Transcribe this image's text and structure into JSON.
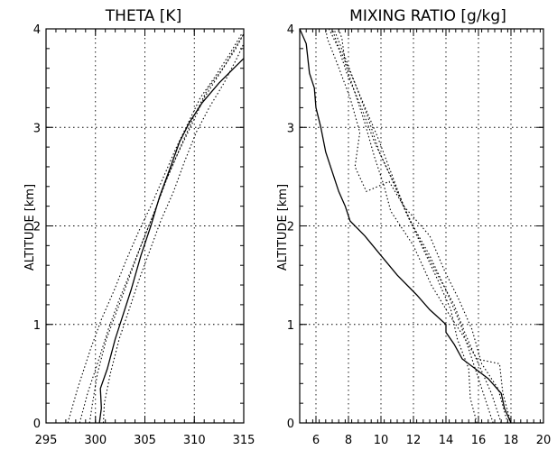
{
  "chart_data": [
    {
      "type": "line",
      "title": "THETA [K]",
      "xlabel": "",
      "ylabel": "ALTITUDE [km]",
      "xlim": [
        295,
        315
      ],
      "ylim": [
        0,
        4
      ],
      "xticks": [
        "295",
        "300",
        "305",
        "310",
        "315"
      ],
      "yticks": [
        "0",
        "1",
        "2",
        "3",
        "4"
      ],
      "grid": true,
      "series": [
        {
          "style": "solid",
          "points": [
            [
              300.4,
              0.0
            ],
            [
              300.6,
              0.15
            ],
            [
              300.5,
              0.35
            ],
            [
              301.2,
              0.55
            ],
            [
              302.0,
              0.85
            ],
            [
              302.8,
              1.1
            ],
            [
              303.6,
              1.35
            ],
            [
              304.6,
              1.7
            ],
            [
              305.6,
              2.0
            ],
            [
              306.5,
              2.3
            ],
            [
              307.6,
              2.6
            ],
            [
              308.5,
              2.85
            ],
            [
              309.5,
              3.05
            ],
            [
              310.8,
              3.25
            ],
            [
              312.5,
              3.45
            ],
            [
              314.0,
              3.6
            ],
            [
              315.0,
              3.7
            ]
          ]
        },
        {
          "style": "dotted",
          "points": [
            [
              299.4,
              0.0
            ],
            [
              299.7,
              0.2
            ],
            [
              300.2,
              0.5
            ],
            [
              301.1,
              0.85
            ],
            [
              302.4,
              1.2
            ],
            [
              303.5,
              1.5
            ],
            [
              304.6,
              1.8
            ],
            [
              305.8,
              2.1
            ],
            [
              307.1,
              2.45
            ],
            [
              308.4,
              2.75
            ],
            [
              309.6,
              3.0
            ],
            [
              311.0,
              3.3
            ],
            [
              312.6,
              3.55
            ],
            [
              314.2,
              3.8
            ],
            [
              315.0,
              3.95
            ]
          ]
        },
        {
          "style": "dotted",
          "points": [
            [
              298.4,
              0.0
            ],
            [
              299.2,
              0.3
            ],
            [
              300.2,
              0.6
            ],
            [
              301.3,
              0.95
            ],
            [
              302.4,
              1.25
            ],
            [
              303.6,
              1.55
            ],
            [
              304.8,
              1.85
            ],
            [
              306.0,
              2.15
            ],
            [
              307.3,
              2.5
            ],
            [
              308.6,
              2.8
            ],
            [
              309.9,
              3.1
            ],
            [
              311.4,
              3.4
            ],
            [
              312.9,
              3.6
            ],
            [
              314.4,
              3.85
            ],
            [
              315.0,
              3.95
            ]
          ]
        },
        {
          "style": "dotted",
          "points": [
            [
              297.2,
              0.0
            ],
            [
              298.2,
              0.35
            ],
            [
              299.5,
              0.75
            ],
            [
              300.6,
              1.05
            ],
            [
              301.9,
              1.35
            ],
            [
              303.1,
              1.65
            ],
            [
              304.4,
              1.95
            ],
            [
              305.6,
              2.2
            ],
            [
              306.9,
              2.5
            ],
            [
              308.2,
              2.8
            ],
            [
              309.4,
              3.05
            ],
            [
              310.6,
              3.3
            ],
            [
              312.0,
              3.5
            ],
            [
              313.6,
              3.75
            ],
            [
              314.8,
              3.95
            ]
          ]
        },
        {
          "style": "dotted",
          "points": [
            [
              300.8,
              0.0
            ],
            [
              300.9,
              0.2
            ],
            [
              301.5,
              0.5
            ],
            [
              302.4,
              0.85
            ],
            [
              303.4,
              1.15
            ],
            [
              304.4,
              1.45
            ],
            [
              305.5,
              1.75
            ],
            [
              306.6,
              2.05
            ],
            [
              307.9,
              2.35
            ],
            [
              309.0,
              2.65
            ],
            [
              310.2,
              2.95
            ],
            [
              311.5,
              3.2
            ],
            [
              313.0,
              3.45
            ],
            [
              314.3,
              3.7
            ],
            [
              315.0,
              3.85
            ]
          ]
        }
      ]
    },
    {
      "type": "line",
      "title": "MIXING RATIO [g/kg]",
      "xlabel": "",
      "ylabel": "ALTITUDE [km]",
      "xlim": [
        5,
        20
      ],
      "ylim": [
        0,
        4
      ],
      "xticks": [
        "6",
        "8",
        "10",
        "12",
        "14",
        "16",
        "18",
        "20"
      ],
      "yticks": [
        "0",
        "1",
        "2",
        "3",
        "4"
      ],
      "grid": true,
      "series": [
        {
          "style": "solid",
          "points": [
            [
              18.0,
              0.0
            ],
            [
              17.6,
              0.15
            ],
            [
              17.4,
              0.3
            ],
            [
              16.6,
              0.45
            ],
            [
              15.8,
              0.55
            ],
            [
              15.0,
              0.65
            ],
            [
              14.5,
              0.8
            ],
            [
              14.0,
              0.92
            ],
            [
              14.0,
              1.0
            ],
            [
              13.0,
              1.15
            ],
            [
              12.2,
              1.3
            ],
            [
              11.0,
              1.5
            ],
            [
              10.0,
              1.7
            ],
            [
              9.0,
              1.9
            ],
            [
              8.1,
              2.05
            ],
            [
              7.8,
              2.2
            ],
            [
              7.4,
              2.35
            ],
            [
              7.0,
              2.55
            ],
            [
              6.6,
              2.75
            ],
            [
              6.3,
              3.0
            ],
            [
              6.0,
              3.2
            ],
            [
              5.9,
              3.4
            ],
            [
              5.6,
              3.55
            ],
            [
              5.5,
              3.7
            ],
            [
              5.4,
              3.85
            ],
            [
              5.0,
              4.0
            ]
          ]
        },
        {
          "style": "dotted",
          "points": [
            [
              18.0,
              0.0
            ],
            [
              17.5,
              0.3
            ],
            [
              17.3,
              0.6
            ],
            [
              15.9,
              0.65
            ],
            [
              15.0,
              0.9
            ],
            [
              14.2,
              1.1
            ],
            [
              13.1,
              1.4
            ],
            [
              12.0,
              1.8
            ],
            [
              10.6,
              2.15
            ],
            [
              10.2,
              2.4
            ],
            [
              9.6,
              2.7
            ],
            [
              9.0,
              3.05
            ],
            [
              8.4,
              3.35
            ],
            [
              7.8,
              3.65
            ],
            [
              7.6,
              3.9
            ],
            [
              7.4,
              4.0
            ]
          ]
        },
        {
          "style": "dotted",
          "points": [
            [
              17.4,
              0.0
            ],
            [
              16.8,
              0.3
            ],
            [
              16.0,
              0.6
            ],
            [
              15.2,
              0.9
            ],
            [
              14.5,
              1.2
            ],
            [
              13.5,
              1.5
            ],
            [
              12.4,
              1.85
            ],
            [
              11.4,
              2.2
            ],
            [
              10.6,
              2.55
            ],
            [
              9.8,
              2.9
            ],
            [
              8.9,
              3.25
            ],
            [
              8.0,
              3.6
            ],
            [
              7.3,
              3.85
            ],
            [
              7.0,
              4.0
            ]
          ]
        },
        {
          "style": "dotted",
          "points": [
            [
              16.9,
              0.0
            ],
            [
              16.3,
              0.3
            ],
            [
              15.6,
              0.65
            ],
            [
              14.9,
              1.0
            ],
            [
              14.0,
              1.35
            ],
            [
              13.0,
              1.7
            ],
            [
              11.8,
              2.05
            ],
            [
              10.9,
              2.4
            ],
            [
              9.9,
              2.75
            ],
            [
              9.2,
              3.1
            ],
            [
              8.4,
              3.45
            ],
            [
              7.7,
              3.75
            ],
            [
              7.1,
              4.0
            ]
          ]
        },
        {
          "style": "dotted",
          "points": [
            [
              17.8,
              0.0
            ],
            [
              17.2,
              0.35
            ],
            [
              16.2,
              0.6
            ],
            [
              15.6,
              0.95
            ],
            [
              14.8,
              1.25
            ],
            [
              13.9,
              1.55
            ],
            [
              13.0,
              1.9
            ],
            [
              11.4,
              2.2
            ],
            [
              10.5,
              2.45
            ],
            [
              9.1,
              2.35
            ],
            [
              8.4,
              2.6
            ],
            [
              8.7,
              2.95
            ],
            [
              8.1,
              3.3
            ],
            [
              7.3,
              3.65
            ],
            [
              6.7,
              3.9
            ],
            [
              6.6,
              4.0
            ]
          ]
        },
        {
          "style": "dotted",
          "points": [
            [
              15.9,
              0.0
            ],
            [
              15.5,
              0.25
            ],
            [
              15.4,
              0.55
            ],
            [
              14.7,
              0.85
            ],
            [
              14.3,
              1.15
            ],
            [
              13.5,
              1.45
            ],
            [
              12.5,
              1.8
            ],
            [
              11.5,
              2.15
            ],
            [
              10.6,
              2.5
            ],
            [
              9.6,
              2.85
            ],
            [
              8.8,
              3.2
            ],
            [
              7.9,
              3.55
            ],
            [
              7.4,
              3.8
            ],
            [
              6.8,
              4.0
            ]
          ]
        }
      ]
    }
  ]
}
